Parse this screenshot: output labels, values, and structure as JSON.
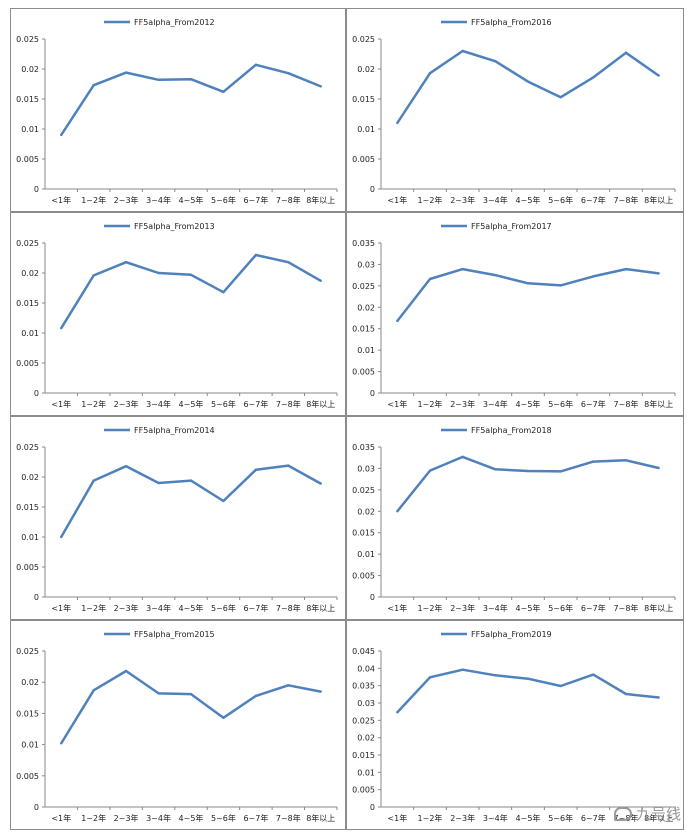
{
  "categories": [
    "<1年",
    "1~2年",
    "2~3年",
    "3~4年",
    "4~5年",
    "5~6年",
    "6~7年",
    "7~8年",
    "8年以上"
  ],
  "line_color": "#4f81bd",
  "watermark_text": "九号线",
  "chart_data": [
    {
      "type": "line",
      "legend": "FF5alpha_From2012",
      "ylim": [
        0,
        0.025
      ],
      "yticks": [
        "0",
        "0.005",
        "0.01",
        "0.015",
        "0.02",
        "0.025"
      ],
      "series": [
        {
          "name": "FF5alpha_From2012",
          "values": [
            0.009,
            0.0173,
            0.0194,
            0.0182,
            0.0183,
            0.0162,
            0.0207,
            0.0193,
            0.0171
          ]
        }
      ]
    },
    {
      "type": "line",
      "legend": "FF5alpha_From2016",
      "ylim": [
        0,
        0.025
      ],
      "yticks": [
        "0",
        "0.005",
        "0.01",
        "0.015",
        "0.02",
        "0.025"
      ],
      "series": [
        {
          "name": "FF5alpha_From2016",
          "values": [
            0.011,
            0.0193,
            0.023,
            0.0213,
            0.0179,
            0.0153,
            0.0186,
            0.0227,
            0.0189
          ]
        }
      ]
    },
    {
      "type": "line",
      "legend": "FF5alpha_From2013",
      "ylim": [
        0,
        0.025
      ],
      "yticks": [
        "0",
        "0.005",
        "0.01",
        "0.015",
        "0.02",
        "0.025"
      ],
      "series": [
        {
          "name": "FF5alpha_From2013",
          "values": [
            0.0108,
            0.0196,
            0.0218,
            0.02,
            0.0197,
            0.0168,
            0.023,
            0.0218,
            0.0187
          ]
        }
      ]
    },
    {
      "type": "line",
      "legend": "FF5alpha_From2017",
      "ylim": [
        0,
        0.035
      ],
      "yticks": [
        "0",
        "0.005",
        "0.01",
        "0.015",
        "0.02",
        "0.025",
        "0.03",
        "0.035"
      ],
      "series": [
        {
          "name": "FF5alpha_From2017",
          "values": [
            0.0168,
            0.0266,
            0.0289,
            0.0275,
            0.0256,
            0.0251,
            0.0272,
            0.0289,
            0.0279
          ]
        }
      ]
    },
    {
      "type": "line",
      "legend": "FF5alpha_From2014",
      "ylim": [
        0,
        0.025
      ],
      "yticks": [
        "0",
        "0.005",
        "0.01",
        "0.015",
        "0.02",
        "0.025"
      ],
      "series": [
        {
          "name": "FF5alpha_From2014",
          "values": [
            0.01,
            0.0194,
            0.0218,
            0.019,
            0.0194,
            0.016,
            0.0212,
            0.0219,
            0.0189
          ]
        }
      ]
    },
    {
      "type": "line",
      "legend": "FF5alpha_From2018",
      "ylim": [
        0,
        0.035
      ],
      "yticks": [
        "0",
        "0.005",
        "0.01",
        "0.015",
        "0.02",
        "0.025",
        "0.03",
        "0.035"
      ],
      "series": [
        {
          "name": "FF5alpha_From2018",
          "values": [
            0.02,
            0.0295,
            0.0327,
            0.0298,
            0.0294,
            0.0293,
            0.0316,
            0.0319,
            0.0301
          ]
        }
      ]
    },
    {
      "type": "line",
      "legend": "FF5alpha_From2015",
      "ylim": [
        0,
        0.025
      ],
      "yticks": [
        "0",
        "0.005",
        "0.01",
        "0.015",
        "0.02",
        "0.025"
      ],
      "series": [
        {
          "name": "FF5alpha_From2015",
          "values": [
            0.0102,
            0.0187,
            0.0218,
            0.0182,
            0.0181,
            0.0143,
            0.0178,
            0.0195,
            0.0185
          ]
        }
      ]
    },
    {
      "type": "line",
      "legend": "FF5alpha_From2019",
      "ylim": [
        0,
        0.045
      ],
      "yticks": [
        "0",
        "0.005",
        "0.01",
        "0.015",
        "0.02",
        "0.025",
        "0.03",
        "0.035",
        "0.04",
        "0.045"
      ],
      "series": [
        {
          "name": "FF5alpha_From2019",
          "values": [
            0.0273,
            0.0374,
            0.0396,
            0.038,
            0.037,
            0.0349,
            0.0382,
            0.0326,
            0.0316
          ]
        }
      ]
    }
  ]
}
